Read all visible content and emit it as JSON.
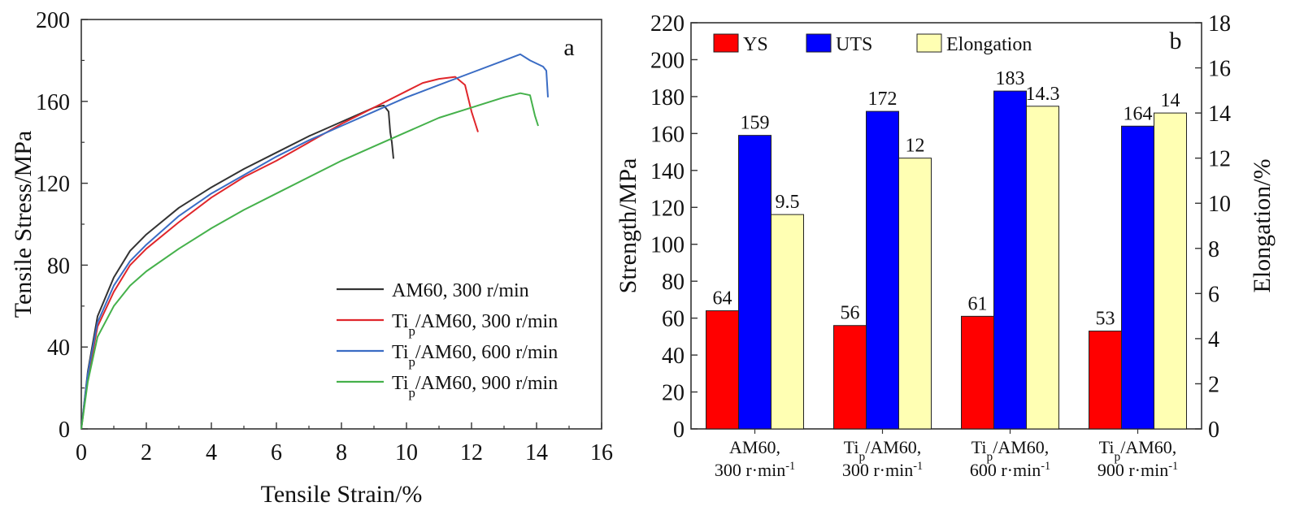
{
  "chart_data": [
    {
      "type": "line",
      "panel_label": "a",
      "xlabel": "Tensile Strain/%",
      "ylabel": "Tensile Stress/MPa",
      "xlim": [
        0,
        16
      ],
      "ylim": [
        0,
        200
      ],
      "xticks": [
        "0",
        "2",
        "4",
        "6",
        "8",
        "10",
        "12",
        "14",
        "16"
      ],
      "yticks": [
        "0",
        "40",
        "80",
        "120",
        "160",
        "200"
      ],
      "legend_position": "bottom-right",
      "series": [
        {
          "name_parts": [
            "AM60, 300 r/min"
          ],
          "color": "#333333",
          "points": [
            [
              0,
              0
            ],
            [
              0.2,
              28
            ],
            [
              0.5,
              55
            ],
            [
              1,
              74
            ],
            [
              1.5,
              87
            ],
            [
              2,
              95
            ],
            [
              3,
              108
            ],
            [
              4,
              118
            ],
            [
              5,
              127
            ],
            [
              6,
              135
            ],
            [
              7,
              143
            ],
            [
              8,
              150
            ],
            [
              9,
              157
            ],
            [
              9.3,
              158
            ],
            [
              9.45,
              155
            ],
            [
              9.5,
              145
            ],
            [
              9.55,
              140
            ],
            [
              9.6,
              132
            ]
          ]
        },
        {
          "name_parts": [
            "Ti",
            "p",
            "/AM60, 300 r/min"
          ],
          "color": "#e0262b",
          "points": [
            [
              0,
              0
            ],
            [
              0.2,
              25
            ],
            [
              0.5,
              50
            ],
            [
              1,
              67
            ],
            [
              1.5,
              80
            ],
            [
              2,
              88
            ],
            [
              3,
              101
            ],
            [
              4,
              113
            ],
            [
              5,
              123
            ],
            [
              6,
              131
            ],
            [
              7,
              140
            ],
            [
              8,
              149
            ],
            [
              9,
              157
            ],
            [
              10,
              165
            ],
            [
              10.5,
              169
            ],
            [
              11,
              171
            ],
            [
              11.5,
              172
            ],
            [
              11.8,
              168
            ],
            [
              12,
              155
            ],
            [
              12.1,
              150
            ],
            [
              12.2,
              145
            ]
          ]
        },
        {
          "name_parts": [
            "Ti",
            "p",
            "/AM60, 600 r/min"
          ],
          "color": "#3a6cc4",
          "points": [
            [
              0,
              0
            ],
            [
              0.2,
              27
            ],
            [
              0.5,
              52
            ],
            [
              1,
              70
            ],
            [
              1.5,
              82
            ],
            [
              2,
              90
            ],
            [
              3,
              104
            ],
            [
              4,
              115
            ],
            [
              5,
              124
            ],
            [
              6,
              133
            ],
            [
              7,
              141
            ],
            [
              8,
              148
            ],
            [
              9,
              155
            ],
            [
              10,
              162
            ],
            [
              11,
              168
            ],
            [
              12,
              174
            ],
            [
              13,
              180
            ],
            [
              13.5,
              183
            ],
            [
              13.8,
              180
            ],
            [
              14.2,
              177
            ],
            [
              14.3,
              175
            ],
            [
              14.35,
              162
            ]
          ]
        },
        {
          "name_parts": [
            "Ti",
            "p",
            "/AM60, 900 r/min"
          ],
          "color": "#45b14b",
          "points": [
            [
              0,
              0
            ],
            [
              0.2,
              23
            ],
            [
              0.5,
              45
            ],
            [
              1,
              60
            ],
            [
              1.5,
              70
            ],
            [
              2,
              77
            ],
            [
              3,
              88
            ],
            [
              4,
              98
            ],
            [
              5,
              107
            ],
            [
              6,
              115
            ],
            [
              7,
              123
            ],
            [
              8,
              131
            ],
            [
              9,
              138
            ],
            [
              10,
              145
            ],
            [
              11,
              152
            ],
            [
              12,
              157
            ],
            [
              13,
              162
            ],
            [
              13.5,
              164
            ],
            [
              13.8,
              163
            ],
            [
              13.95,
              153
            ],
            [
              14.05,
              148
            ]
          ]
        }
      ]
    },
    {
      "type": "bar",
      "panel_label": "b",
      "ylabel": "Strength/MPa",
      "y2label": "Elongation/%",
      "ylim": [
        0,
        220
      ],
      "y2lim": [
        0,
        18
      ],
      "yticks": [
        "0",
        "20",
        "40",
        "60",
        "80",
        "100",
        "120",
        "140",
        "160",
        "180",
        "200",
        "220"
      ],
      "y2ticks": [
        "0",
        "2",
        "4",
        "6",
        "8",
        "10",
        "12",
        "14",
        "16",
        "18"
      ],
      "legend_position": "top-left",
      "categories": [
        {
          "line1_parts": [
            "AM60,"
          ],
          "line2_parts": [
            "300 r·min",
            "-1"
          ]
        },
        {
          "line1_parts": [
            "Ti",
            "p",
            "/AM60,"
          ],
          "line2_parts": [
            "300 r·min",
            "-1"
          ]
        },
        {
          "line1_parts": [
            "Ti",
            "p",
            "/AM60,"
          ],
          "line2_parts": [
            "600 r·min",
            "-1"
          ]
        },
        {
          "line1_parts": [
            "Ti",
            "p",
            "/AM60,"
          ],
          "line2_parts": [
            "900 r·min",
            "-1"
          ]
        }
      ],
      "series": [
        {
          "name": "YS",
          "axis": "left",
          "color": "#ff0000",
          "values": [
            64,
            56,
            61,
            53
          ],
          "labels": [
            "64",
            "56",
            "61",
            "53"
          ]
        },
        {
          "name": "UTS",
          "axis": "left",
          "color": "#0000ff",
          "values": [
            159,
            172,
            183,
            164
          ],
          "labels": [
            "159",
            "172",
            "183",
            "164"
          ]
        },
        {
          "name": "Elongation",
          "axis": "right",
          "color": "#ffffb3",
          "values": [
            9.5,
            12,
            14.3,
            14
          ],
          "labels": [
            "9.5",
            "12",
            "14.3",
            "14"
          ]
        }
      ]
    }
  ]
}
